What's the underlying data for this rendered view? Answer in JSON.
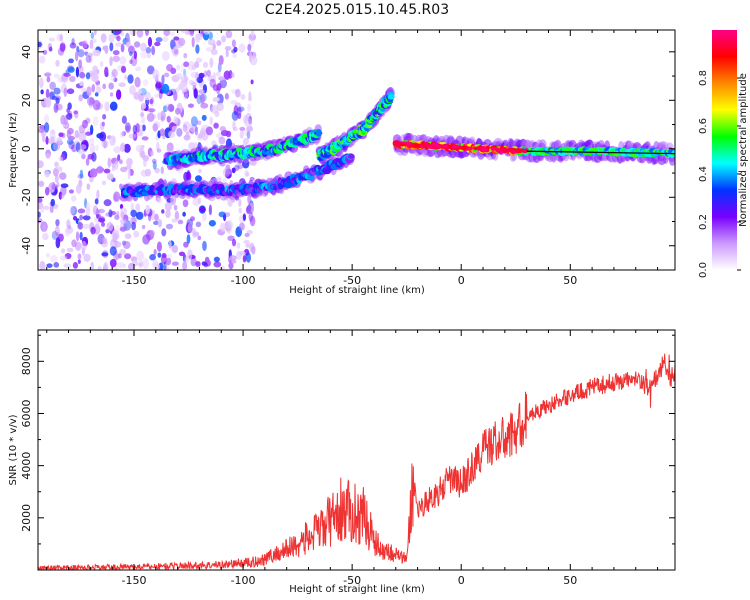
{
  "chart_data": [
    {
      "type": "heatmap",
      "title": "C2E4.2025.015.10.45.R03",
      "xlabel": "Height of straight line (km)",
      "ylabel": "Frequency (Hz)",
      "xlim": [
        -194,
        98
      ],
      "ylim": [
        -50,
        49
      ],
      "xticks": [
        -150,
        -100,
        -50,
        0,
        50
      ],
      "yticks": [
        -40,
        -20,
        0,
        20,
        40
      ],
      "colorbar": {
        "label": "Normalized spectral amplitude",
        "range": [
          0,
          1
        ],
        "ticks": [
          "0.0",
          "0.2",
          "0.4",
          "0.6",
          "0.8"
        ],
        "tick_values": [
          0,
          0.2,
          0.4,
          0.6,
          0.8
        ],
        "colors": [
          "#ffffff",
          "#cc99ff",
          "#7700ff",
          "#0033ff",
          "#00ffff",
          "#00ff00",
          "#ffff00",
          "#ff8800",
          "#ff0000",
          "#ff0088"
        ]
      },
      "features": [
        {
          "name": "scattered noise",
          "x_range": [
            -194,
            -95
          ],
          "freq_range": [
            -50,
            49
          ],
          "amplitude": 0.1
        },
        {
          "name": "lower descending branch",
          "x": [
            -155,
            -140,
            -120,
            -100,
            -85,
            -70,
            -60,
            -50
          ],
          "freq": [
            -18,
            -17,
            -17,
            -17,
            -15,
            -11,
            -7,
            -3
          ],
          "amplitude": 0.3
        },
        {
          "name": "upper branch",
          "x": [
            -135,
            -120,
            -100,
            -85,
            -75,
            -65
          ],
          "freq": [
            -5,
            -3,
            -2,
            0,
            3,
            6
          ],
          "amplitude": 0.4
        },
        {
          "name": "rising branch",
          "x": [
            -65,
            -55,
            -45,
            -38,
            -32
          ],
          "freq": [
            -3,
            2,
            8,
            15,
            22
          ],
          "amplitude": 0.45
        },
        {
          "name": "main echo band",
          "x": [
            -30,
            -10,
            10,
            30,
            60,
            98
          ],
          "freq": [
            2,
            1,
            0,
            -1,
            -1,
            -2
          ],
          "amplitude": 0.95
        }
      ]
    },
    {
      "type": "line",
      "xlabel": "Height of straight line (km)",
      "ylabel": "SNR (10 * v/v)",
      "xlim": [
        -194,
        98
      ],
      "ylim": [
        0,
        9200
      ],
      "xticks": [
        -150,
        -100,
        -50,
        0,
        50
      ],
      "yticks": [
        2000,
        4000,
        6000,
        8000
      ],
      "color": "#ee3333",
      "series": [
        {
          "name": "SNR",
          "x": [
            -194,
            -150,
            -110,
            -95,
            -85,
            -75,
            -65,
            -55,
            -50,
            -45,
            -38,
            -30,
            -25,
            -22,
            -20,
            -15,
            -10,
            -5,
            0,
            5,
            10,
            15,
            20,
            25,
            30,
            35,
            40,
            50,
            60,
            70,
            80,
            85,
            90,
            93,
            96,
            98
          ],
          "y": [
            80,
            120,
            200,
            300,
            600,
            1000,
            1500,
            2300,
            2200,
            2100,
            900,
            600,
            400,
            3500,
            2300,
            2700,
            3000,
            3500,
            3300,
            3900,
            4600,
            4900,
            5000,
            5300,
            5900,
            6100,
            6300,
            6700,
            7000,
            7200,
            7300,
            7000,
            7400,
            8000,
            7300,
            7500
          ]
        }
      ]
    }
  ]
}
